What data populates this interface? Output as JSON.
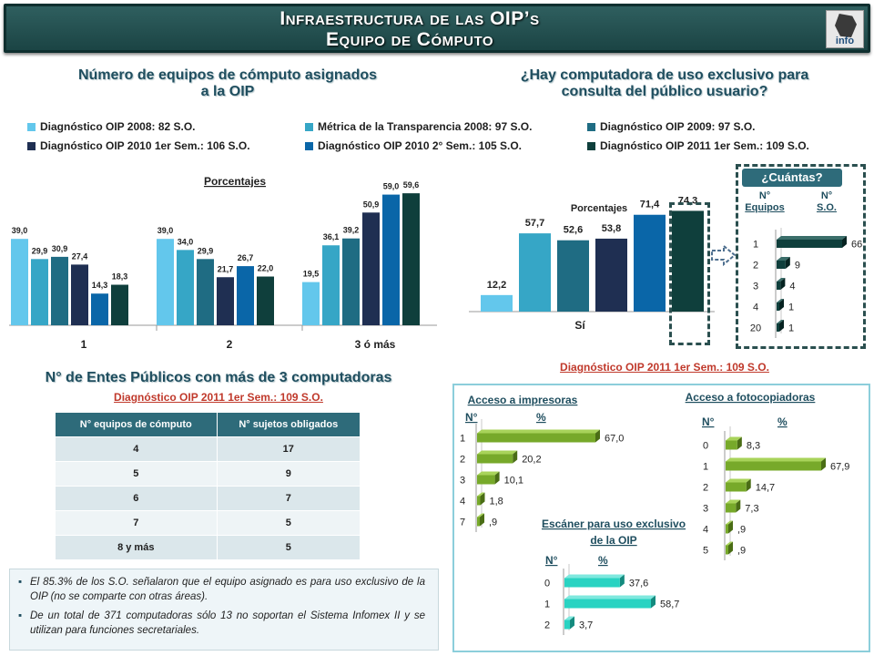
{
  "header": {
    "title_line1": "Infraestructura de las OIP’s",
    "title_line2": "Equipo de Cómputo",
    "logo_text": "info"
  },
  "colors": {
    "c2008": "#63c7ec",
    "cMetrica": "#36a6c6",
    "c2009": "#1f6c83",
    "c2010a": "#1f2f52",
    "c2010b": "#0a66a8",
    "c2011": "#0f3f3c",
    "green": "#77a92a",
    "cyan": "#29d3c2"
  },
  "left_chart": {
    "title_line1": "Número de equipos de cómputo asignados",
    "title_line2": "a la OIP",
    "porcentajes_label": "Porcentajes"
  },
  "right_chart": {
    "title_line1": "¿Hay computadora de uso exclusivo para",
    "title_line2": "consulta del público usuario?",
    "porcentajes_label": "Porcentajes",
    "diagnostico_label": "Diagnóstico OIP 2011 1er Sem.: 109 S.O."
  },
  "legend": [
    {
      "label": "Diagnóstico OIP 2008: 82 S.O.",
      "color": "#63c7ec"
    },
    {
      "label": "Métrica de la Transparencia 2008: 97 S.O.",
      "color": "#36a6c6"
    },
    {
      "label": "Diagnóstico OIP 2009: 97 S.O.",
      "color": "#1f6c83"
    },
    {
      "label": "Diagnóstico OIP 2010 1er Sem.: 106 S.O.",
      "color": "#1f2f52"
    },
    {
      "label": "Diagnóstico OIP 2010 2° Sem.: 105 S.O.",
      "color": "#0a66a8"
    },
    {
      "label": "Diagnóstico OIP 2011 1er Sem.: 109 S.O.",
      "color": "#0f3f3c"
    }
  ],
  "cuantas": {
    "title": "¿Cuántas?",
    "col1_line1": "N°",
    "col1_line2": "Equipos",
    "col2_line1": "N°",
    "col2_line2": "S.O."
  },
  "entes": {
    "title": "N° de Entes Públicos con más de 3 computadoras",
    "subtitle": "Diagnóstico OIP 2011 1er Sem.: 109 S.O.",
    "col1": "N° equipos de cómputo",
    "col2": "N° sujetos obligados",
    "rows": [
      {
        "a": "4",
        "b": "17"
      },
      {
        "a": "5",
        "b": "9"
      },
      {
        "a": "6",
        "b": "7"
      },
      {
        "a": "7",
        "b": "5"
      },
      {
        "a": "8 y más",
        "b": "5"
      }
    ]
  },
  "notes": [
    "El 85.3% de los S.O. señalaron que el equipo asignado es para uso exclusivo de la OIP (no se comparte con otras áreas).",
    "De un total de 371 computadoras sólo 13 no soportan el Sistema Infomex II y se utilizan para funciones secretariales."
  ],
  "chart_data": [
    {
      "type": "bar",
      "title": "Número de equipos de cómputo asignados a la OIP",
      "ylabel": "Porcentajes",
      "categories": [
        "1",
        "2",
        "3 ó más"
      ],
      "series": [
        {
          "name": "Diagnóstico OIP 2008: 82 S.O.",
          "values": [
            39.0,
            39.0,
            19.5
          ],
          "labels": [
            "39,0",
            "39,0",
            "19,5"
          ]
        },
        {
          "name": "Métrica de la Transparencia 2008: 97 S.O.",
          "values": [
            29.9,
            34.0,
            36.1
          ],
          "labels": [
            "29,9",
            "34,0",
            "36,1"
          ]
        },
        {
          "name": "Diagnóstico OIP 2009: 97 S.O.",
          "values": [
            30.9,
            29.9,
            39.2
          ],
          "labels": [
            "30,9",
            "29,9",
            "39,2"
          ]
        },
        {
          "name": "Diagnóstico OIP 2010 1er Sem.: 106 S.O.",
          "values": [
            27.4,
            21.7,
            50.9
          ],
          "labels": [
            "27,4",
            "21,7",
            "50,9"
          ]
        },
        {
          "name": "Diagnóstico OIP 2010 2° Sem.: 105 S.O.",
          "values": [
            14.3,
            26.7,
            59.0
          ],
          "labels": [
            "14,3",
            "26,7",
            "59,0"
          ]
        },
        {
          "name": "Diagnóstico OIP 2011 1er Sem.: 109 S.O.",
          "values": [
            18.3,
            22.0,
            59.6
          ],
          "labels": [
            "18,3",
            "22,0",
            "59,6"
          ]
        }
      ],
      "ylim": [
        0,
        65
      ]
    },
    {
      "type": "bar",
      "title": "¿Hay computadora de uso exclusivo para consulta del público usuario?",
      "ylabel": "Porcentajes",
      "categories": [
        "Sí"
      ],
      "series": [
        {
          "name": "Diagnóstico OIP 2008: 82 S.O.",
          "values": [
            12.2
          ],
          "labels": [
            "12,2"
          ]
        },
        {
          "name": "Métrica de la Transparencia 2008: 97 S.O.",
          "values": [
            57.7
          ],
          "labels": [
            "57,7"
          ]
        },
        {
          "name": "Diagnóstico OIP 2009: 97 S.O.",
          "values": [
            52.6
          ],
          "labels": [
            "52,6"
          ]
        },
        {
          "name": "Diagnóstico OIP 2010 1er Sem.: 106 S.O.",
          "values": [
            53.8
          ],
          "labels": [
            "53,8"
          ]
        },
        {
          "name": "Diagnóstico OIP 2010 2° Sem.: 105 S.O.",
          "values": [
            71.4
          ],
          "labels": [
            "71,4"
          ]
        },
        {
          "name": "Diagnóstico OIP 2011 1er Sem.: 109 S.O.",
          "values": [
            74.3
          ],
          "labels": [
            "74,3"
          ]
        }
      ],
      "ylim": [
        0,
        80
      ]
    },
    {
      "type": "bar",
      "orientation": "horizontal",
      "title": "¿Cuántas?",
      "categories": [
        "1",
        "2",
        "3",
        "4",
        "20"
      ],
      "values": [
        66,
        9,
        4,
        1,
        1
      ],
      "labels": [
        "66",
        "9",
        "4",
        "1",
        "1"
      ],
      "xlim": [
        0,
        70
      ]
    },
    {
      "type": "bar",
      "orientation": "horizontal",
      "title": "Acceso a impresoras",
      "col_n": "N°",
      "col_pct": "%",
      "categories": [
        "1",
        "2",
        "3",
        "4",
        "7"
      ],
      "values": [
        67.0,
        20.2,
        10.1,
        1.8,
        0.9
      ],
      "labels": [
        "67,0",
        "20,2",
        "10,1",
        "1,8",
        ",9"
      ],
      "xlim": [
        0,
        75
      ]
    },
    {
      "type": "bar",
      "orientation": "horizontal",
      "title": "Acceso a fotocopiadoras",
      "col_n": "N°",
      "col_pct": "%",
      "categories": [
        "0",
        "1",
        "2",
        "3",
        "4",
        "5"
      ],
      "values": [
        8.3,
        67.9,
        14.7,
        7.3,
        0.9,
        0.9
      ],
      "labels": [
        "8,3",
        "67,9",
        "14,7",
        "7,3",
        ",9",
        ",9"
      ],
      "xlim": [
        0,
        75
      ]
    },
    {
      "type": "bar",
      "orientation": "horizontal",
      "title": "Escáner para uso exclusivo de la OIP",
      "col_n": "N°",
      "col_pct": "%",
      "categories": [
        "0",
        "1",
        "2"
      ],
      "values": [
        37.6,
        58.7,
        3.7
      ],
      "labels": [
        "37,6",
        "58,7",
        "3,7"
      ],
      "xlim": [
        0,
        65
      ]
    }
  ]
}
